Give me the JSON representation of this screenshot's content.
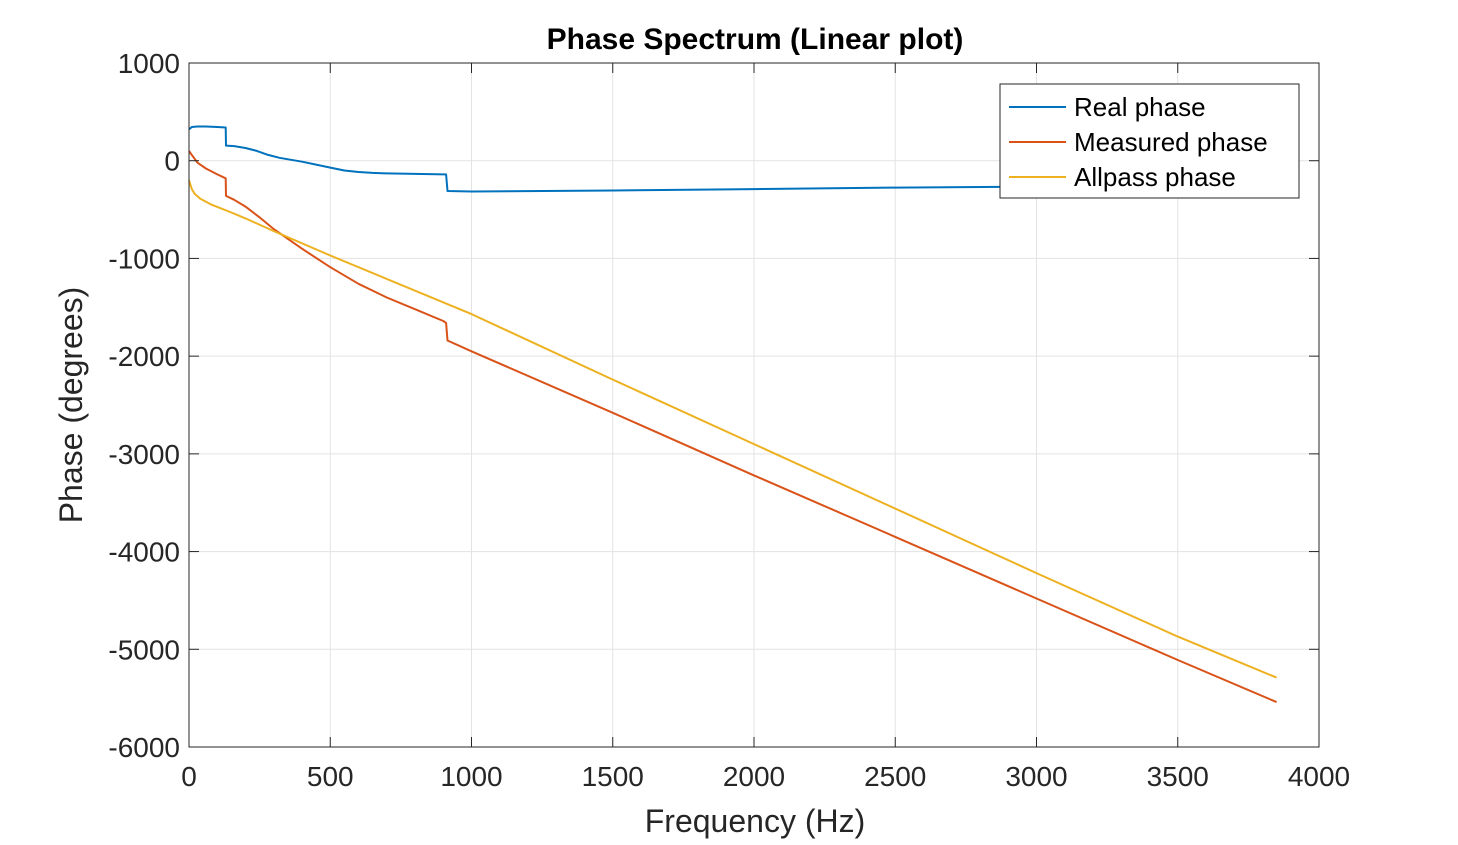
{
  "chart_data": {
    "type": "line",
    "title": "Phase Spectrum (Linear plot)",
    "xlabel": "Frequency (Hz)",
    "ylabel": "Phase (degrees)",
    "xlim": [
      0,
      4000
    ],
    "ylim": [
      -6000,
      1000
    ],
    "xticks": [
      0,
      500,
      1000,
      1500,
      2000,
      2500,
      3000,
      3500,
      4000
    ],
    "xtick_labels": [
      "0",
      "500",
      "1000",
      "1500",
      "2000",
      "2500",
      "3000",
      "3500",
      "4000"
    ],
    "yticks": [
      1000,
      0,
      -1000,
      -2000,
      -3000,
      -4000,
      -5000,
      -6000
    ],
    "ytick_labels": [
      "1000",
      "0",
      "-1000",
      "-2000",
      "-3000",
      "-4000",
      "-5000",
      "-6000"
    ],
    "grid": true,
    "legend_position": "top-right",
    "series": [
      {
        "name": "Real phase",
        "color": "#0072BD",
        "x": [
          0,
          10,
          30,
          60,
          100,
          130,
          131,
          160,
          200,
          240,
          280,
          320,
          400,
          450,
          500,
          550,
          600,
          650,
          700,
          800,
          900,
          910,
          915,
          1000,
          1500,
          2000,
          2500,
          3000,
          3500,
          3850
        ],
        "y": [
          320,
          345,
          350,
          350,
          345,
          340,
          155,
          150,
          130,
          100,
          60,
          30,
          -10,
          -40,
          -70,
          -100,
          -115,
          -125,
          -130,
          -135,
          -140,
          -140,
          -310,
          -315,
          -305,
          -290,
          -275,
          -265,
          -255,
          -250
        ]
      },
      {
        "name": "Measured phase",
        "color": "#D95319",
        "x": [
          0,
          10,
          30,
          60,
          100,
          130,
          131,
          160,
          200,
          250,
          300,
          400,
          500,
          600,
          700,
          800,
          900,
          910,
          915,
          1000,
          1500,
          2000,
          2500,
          3000,
          3500,
          3850
        ],
        "y": [
          100,
          60,
          -20,
          -80,
          -140,
          -180,
          -360,
          -400,
          -470,
          -580,
          -700,
          -900,
          -1090,
          -1260,
          -1400,
          -1520,
          -1640,
          -1660,
          -1840,
          -1950,
          -2580,
          -3220,
          -3850,
          -4480,
          -5110,
          -5540
        ]
      },
      {
        "name": "Allpass phase",
        "color": "#EDB120",
        "x": [
          0,
          10,
          20,
          40,
          80,
          150,
          200,
          300,
          500,
          1000,
          1500,
          2000,
          2500,
          3000,
          3500,
          3850
        ],
        "y": [
          -200,
          -290,
          -340,
          -390,
          -450,
          -530,
          -590,
          -720,
          -970,
          -1570,
          -2240,
          -2900,
          -3560,
          -4220,
          -4870,
          -5290
        ]
      }
    ]
  }
}
